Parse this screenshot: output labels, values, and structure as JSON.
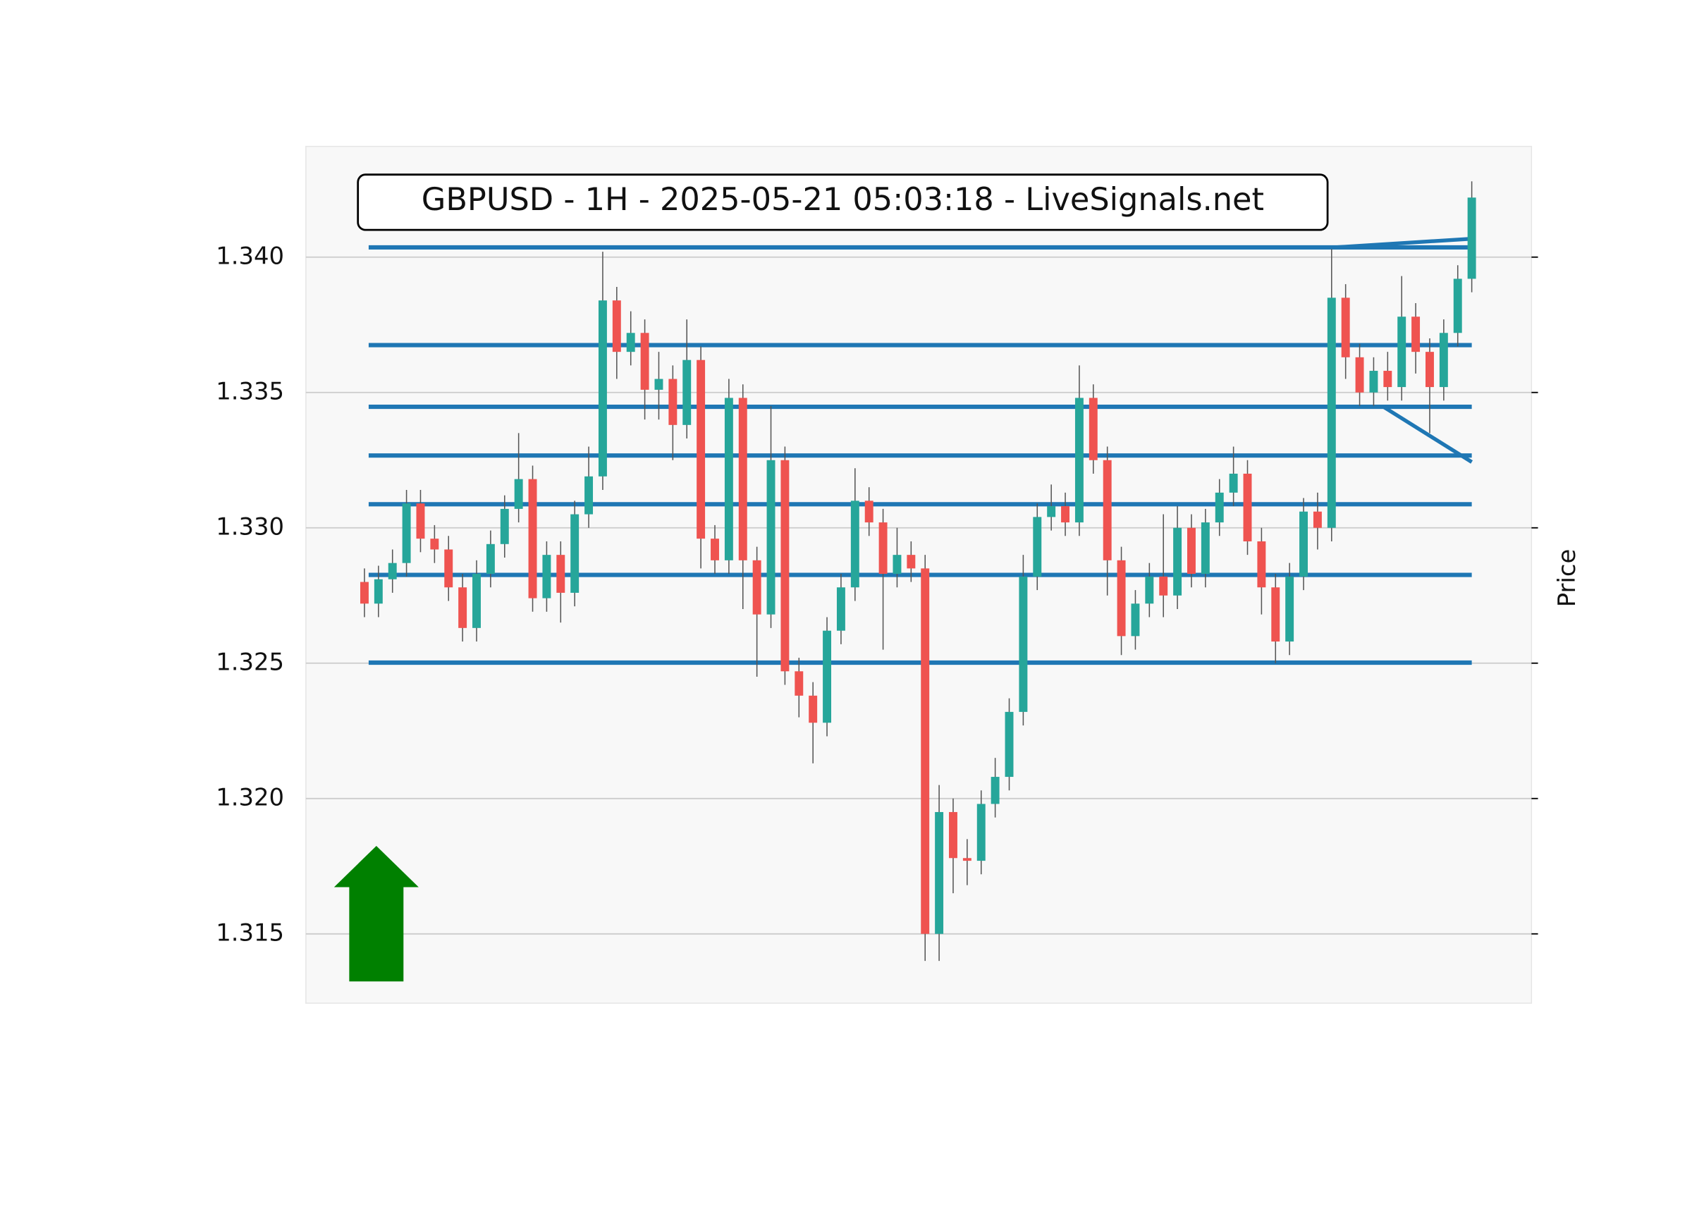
{
  "chart_data": {
    "type": "candlestick",
    "title": "GBPUSD - 1H - 2025-05-21 05:03:18 - LiveSignals.net",
    "y_label": "Price",
    "xlim": [
      -4.18,
      83.26
    ],
    "ylim": [
      1.31244,
      1.34409
    ],
    "yticks": [
      1.315,
      {
        "value": 1.32,
        "label": "1.320"
      },
      1.325,
      {
        "value": 1.33,
        "label": "1.330"
      },
      1.335,
      {
        "value": 1.34,
        "label": "1.340"
      }
    ],
    "grid": true,
    "up_color": "#26a69a",
    "down_color": "#ef5350",
    "open": [
      1.328,
      1.3272,
      1.3281,
      1.3287,
      1.3309,
      1.3296,
      1.3292,
      1.3278,
      1.3263,
      1.3283,
      1.3294,
      1.3307,
      1.3318,
      1.3274,
      1.329,
      1.3276,
      1.3305,
      1.3319,
      1.3384,
      1.3365,
      1.3372,
      1.3351,
      1.3355,
      1.3338,
      1.3362,
      1.3296,
      1.3288,
      1.3348,
      1.3288,
      1.3268,
      1.3325,
      1.3247,
      1.3238,
      1.3228,
      1.3262,
      1.3278,
      1.331,
      1.3302,
      1.3283,
      1.329,
      1.3285,
      1.315,
      1.3195,
      1.3178,
      1.3177,
      1.3198,
      1.3208,
      1.3232,
      1.3282,
      1.3304,
      1.3308,
      1.3302,
      1.3348,
      1.3325,
      1.3288,
      1.326,
      1.3272,
      1.3282,
      1.3275,
      1.33,
      1.3283,
      1.3302,
      1.3313,
      1.332,
      1.3295,
      1.3278,
      1.3258,
      1.3282,
      1.3306,
      1.33,
      1.3385,
      1.3363,
      1.335,
      1.3358,
      1.3352,
      1.3378,
      1.3365,
      1.3352,
      1.3372,
      1.3392
    ],
    "high": [
      1.3285,
      1.3286,
      1.3292,
      1.3314,
      1.3314,
      1.3301,
      1.3297,
      1.3283,
      1.3288,
      1.3299,
      1.3312,
      1.3335,
      1.3323,
      1.3295,
      1.3295,
      1.331,
      1.333,
      1.3402,
      1.3389,
      1.338,
      1.3377,
      1.3365,
      1.336,
      1.3377,
      1.3367,
      1.3301,
      1.3355,
      1.3353,
      1.3293,
      1.3345,
      1.333,
      1.3252,
      1.3243,
      1.3267,
      1.3283,
      1.3322,
      1.3315,
      1.3307,
      1.33,
      1.3295,
      1.329,
      1.3205,
      1.32,
      1.3185,
      1.3203,
      1.3215,
      1.3237,
      1.329,
      1.3309,
      1.3316,
      1.3313,
      1.336,
      1.3353,
      1.333,
      1.3293,
      1.3277,
      1.3287,
      1.3305,
      1.3308,
      1.3305,
      1.3307,
      1.3318,
      1.333,
      1.3325,
      1.33,
      1.3283,
      1.3287,
      1.3311,
      1.3313,
      1.3403,
      1.339,
      1.3368,
      1.3363,
      1.3365,
      1.3393,
      1.3383,
      1.337,
      1.3377,
      1.3397,
      1.3428
    ],
    "low": [
      1.3267,
      1.3267,
      1.3276,
      1.3282,
      1.3291,
      1.3287,
      1.3273,
      1.3258,
      1.3258,
      1.3278,
      1.3289,
      1.3302,
      1.3269,
      1.3269,
      1.3265,
      1.3271,
      1.33,
      1.3314,
      1.3355,
      1.336,
      1.334,
      1.334,
      1.3325,
      1.3333,
      1.3285,
      1.3283,
      1.3283,
      1.327,
      1.3245,
      1.3263,
      1.3242,
      1.323,
      1.3213,
      1.3223,
      1.3257,
      1.3273,
      1.3297,
      1.3255,
      1.3278,
      1.328,
      1.314,
      1.314,
      1.3165,
      1.3168,
      1.3172,
      1.3193,
      1.3203,
      1.3227,
      1.3277,
      1.3299,
      1.3297,
      1.3297,
      1.332,
      1.3275,
      1.3253,
      1.3255,
      1.3267,
      1.3267,
      1.327,
      1.3278,
      1.3278,
      1.3297,
      1.3308,
      1.329,
      1.3268,
      1.325,
      1.3253,
      1.3277,
      1.3292,
      1.3295,
      1.3355,
      1.3345,
      1.3345,
      1.3347,
      1.3347,
      1.3357,
      1.3335,
      1.3347,
      1.3367,
      1.3387
    ],
    "close": [
      1.3272,
      1.3281,
      1.3287,
      1.3309,
      1.3296,
      1.3292,
      1.3278,
      1.3263,
      1.3283,
      1.3294,
      1.3307,
      1.3318,
      1.3274,
      1.329,
      1.3276,
      1.3305,
      1.3319,
      1.3384,
      1.3365,
      1.3372,
      1.3351,
      1.3355,
      1.3338,
      1.3362,
      1.3296,
      1.3288,
      1.3348,
      1.3288,
      1.3268,
      1.3325,
      1.3247,
      1.3238,
      1.3228,
      1.3262,
      1.3278,
      1.331,
      1.3302,
      1.3283,
      1.329,
      1.3285,
      1.315,
      1.3195,
      1.3178,
      1.3177,
      1.3198,
      1.3208,
      1.3232,
      1.3282,
      1.3304,
      1.3308,
      1.3302,
      1.3348,
      1.3325,
      1.3288,
      1.326,
      1.3272,
      1.3282,
      1.3275,
      1.33,
      1.3283,
      1.3302,
      1.3313,
      1.332,
      1.3295,
      1.3278,
      1.3258,
      1.3282,
      1.3306,
      1.33,
      1.3385,
      1.3363,
      1.335,
      1.3358,
      1.3352,
      1.3378,
      1.3365,
      1.3352,
      1.3372,
      1.3392,
      1.3422
    ],
    "level_color": "#1f77b4",
    "level_x": [
      0.3,
      79
    ],
    "levels": [
      1.34036,
      1.33675,
      1.33447,
      1.33267,
      1.33087,
      1.32826,
      1.32502
    ],
    "trendlines": [
      {
        "x": [
          69.2,
          79
        ],
        "y": [
          1.34036,
          1.34068
        ]
      },
      {
        "x": [
          72.7,
          79
        ],
        "y": [
          1.33447,
          1.33243
        ]
      }
    ]
  }
}
